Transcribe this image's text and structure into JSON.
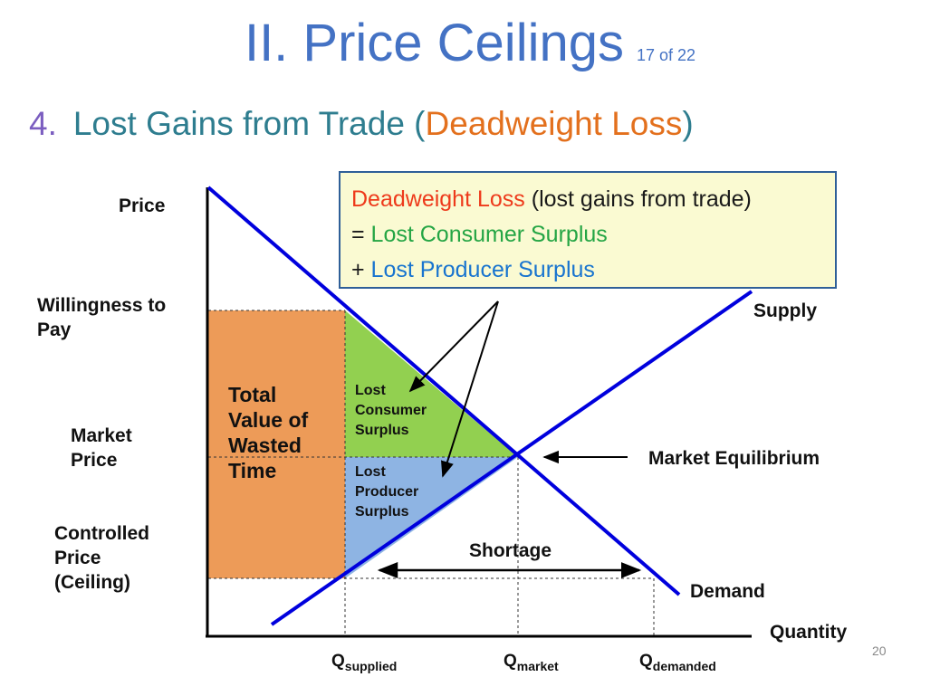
{
  "title": {
    "main": "II. Price Ceilings",
    "counter": "17 of 22"
  },
  "subtitle": {
    "number": "4.",
    "prefix": "Lost Gains from Trade (",
    "highlight": "Deadweight Loss",
    "suffix": ")"
  },
  "callout": {
    "line1_red": "Deadweight Loss",
    "line1_rest": " (lost gains from trade)",
    "line2_prefix": "= ",
    "line2_green": "Lost Consumer Surplus",
    "line3_prefix": "+ ",
    "line3_blue": "Lost Producer Surplus"
  },
  "axis": {
    "price": "Price",
    "quantity": "Quantity"
  },
  "y_labels": {
    "wtp_line1": "Willingness to",
    "wtp_line2": "Pay",
    "mp_line1": "Market",
    "mp_line2": "Price",
    "cp_line1": "Controlled",
    "cp_line2": "Price",
    "cp_line3": "(Ceiling)"
  },
  "regions": {
    "total_l1": "Total",
    "total_l2": "Value of",
    "total_l3": "Wasted",
    "total_l4": "Time",
    "lcs_l1": "Lost",
    "lcs_l2": "Consumer",
    "lcs_l3": "Surplus",
    "lps_l1": "Lost",
    "lps_l2": "Producer",
    "lps_l3": "Surplus"
  },
  "curves": {
    "supply": "Supply",
    "demand": "Demand",
    "equilibrium": "Market Equilibrium",
    "shortage": "Shortage"
  },
  "x_labels": {
    "qs_main": "Q",
    "qs_sub": "supplied",
    "qm_main": "Q",
    "qm_sub": "market",
    "qd_main": "Q",
    "qd_sub": "demanded"
  },
  "page_number": "20",
  "colors": {
    "title": "#4472c4",
    "orange_region": "#ed9b58",
    "green_region": "#92d050",
    "blue_region": "#8eb4e3",
    "curve": "#0000dd",
    "callout_bg": "#fafad2"
  }
}
